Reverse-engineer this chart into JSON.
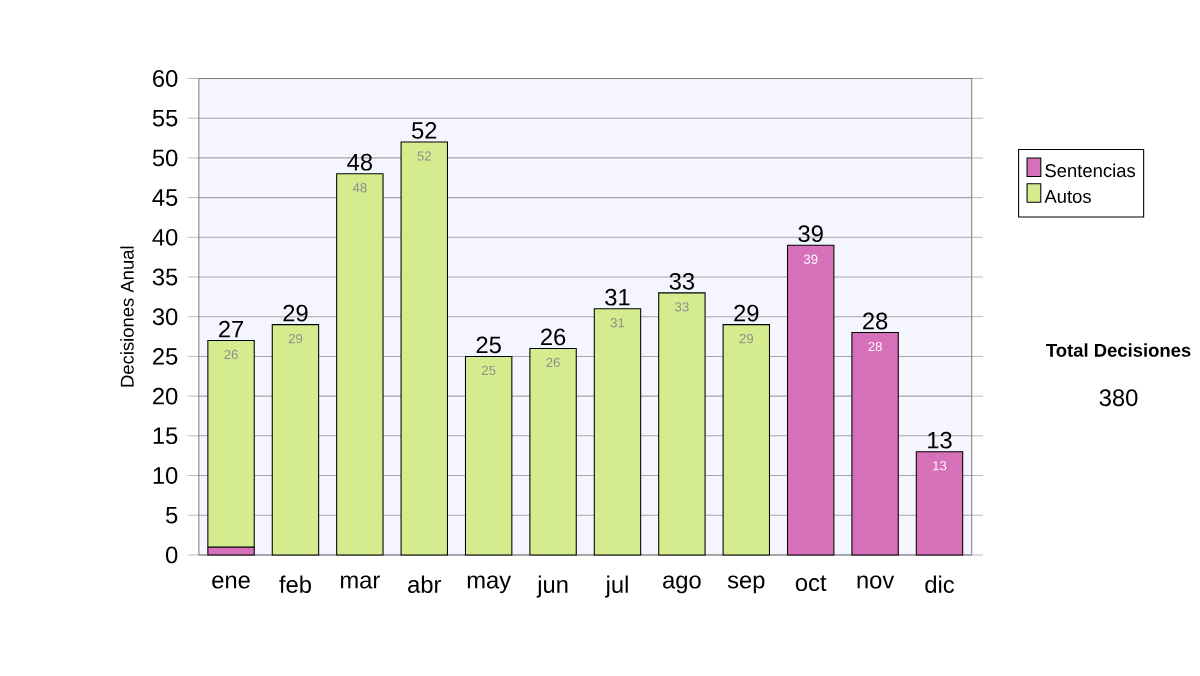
{
  "chart_data": {
    "type": "bar",
    "stacked": true,
    "ylabel": "Decisiones Anual",
    "categories": [
      "ene",
      "feb",
      "mar",
      "abr",
      "may",
      "jun",
      "jul",
      "ago",
      "sep",
      "oct",
      "nov",
      "dic"
    ],
    "series": [
      {
        "name": "Sentencias",
        "color": "#d670b9",
        "values": [
          1,
          null,
          null,
          null,
          null,
          null,
          null,
          null,
          null,
          39,
          28,
          13
        ],
        "value_labels": [
          null,
          null,
          null,
          null,
          null,
          null,
          null,
          null,
          null,
          "39",
          "28",
          "13"
        ]
      },
      {
        "name": "Autos",
        "color": "#d5ec8e",
        "values": [
          26,
          29,
          48,
          52,
          25,
          26,
          31,
          33,
          29,
          null,
          null,
          null
        ],
        "value_labels": [
          "26",
          "29",
          "48",
          "52",
          "25",
          "26",
          "31",
          "33",
          "29",
          null,
          null,
          null
        ]
      }
    ],
    "totals": [
      "27",
      "29",
      "48",
      "52",
      "25",
      "26",
      "31",
      "33",
      "29",
      "39",
      "28",
      "13"
    ],
    "ylim": [
      0,
      60
    ],
    "yticks": [
      0,
      5,
      10,
      15,
      20,
      25,
      30,
      35,
      40,
      45,
      50,
      55,
      60
    ],
    "grid": "y",
    "legend": "right",
    "annotations": [
      "Total Decisiones",
      "380"
    ]
  }
}
